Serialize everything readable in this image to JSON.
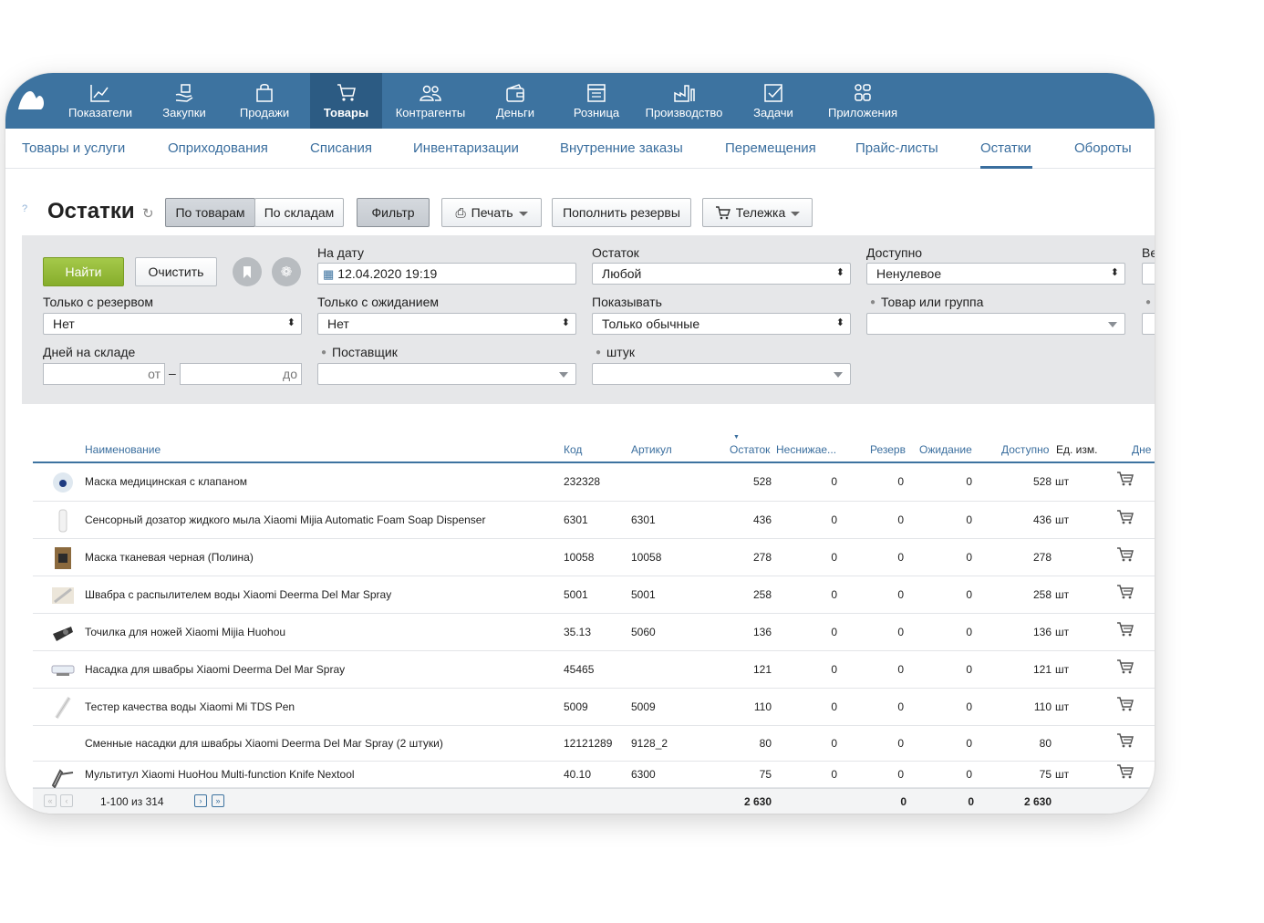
{
  "nav": {
    "items": [
      {
        "label": "Показатели",
        "icon": "chart-line-icon"
      },
      {
        "label": "Закупки",
        "icon": "hand-box-icon"
      },
      {
        "label": "Продажи",
        "icon": "shopping-bag-icon"
      },
      {
        "label": "Товары",
        "icon": "cart-icon"
      },
      {
        "label": "Контрагенты",
        "icon": "people-icon"
      },
      {
        "label": "Деньги",
        "icon": "wallet-icon"
      },
      {
        "label": "Розница",
        "icon": "store-icon"
      },
      {
        "label": "Производство",
        "icon": "factory-icon"
      },
      {
        "label": "Задачи",
        "icon": "checkbox-icon"
      },
      {
        "label": "Приложения",
        "icon": "apps-icon"
      }
    ],
    "active": "Товары",
    "color": "#3d73a0"
  },
  "subnav": {
    "items": [
      "Товары и услуги",
      "Оприходования",
      "Списания",
      "Инвентаризации",
      "Внутренние заказы",
      "Перемещения",
      "Прайс-листы",
      "Остатки",
      "Обороты"
    ],
    "active": "Остатки"
  },
  "toolbar": {
    "help": "?",
    "title": "Остатки",
    "by_goods": "По товарам",
    "by_warehouses": "По складам",
    "filter": "Фильтр",
    "print": "Печать",
    "replenish": "Пополнить резервы",
    "cart": "Тележка"
  },
  "filters": {
    "find": "Найти",
    "clear": "Очистить",
    "date_label": "На дату",
    "date_value": "12.04.2020 19:19",
    "stock_label": "Остаток",
    "stock_value": "Любой",
    "available_label": "Доступно",
    "available_value": "Ненулевое",
    "cut_label": "Ве",
    "reserve_label": "Только с резервом",
    "reserve_value": "Нет",
    "waiting_label": "Только с ожиданием",
    "waiting_value": "Нет",
    "show_label": "Показывать",
    "show_value": "Только обычные",
    "group_label": "Товар или группа",
    "days_label": "Дней на складе",
    "days_from": "от",
    "days_to": "до",
    "supplier_label": "Поставщик",
    "pieces_label": "штук",
    "dash": "–"
  },
  "table": {
    "headers": {
      "name": "Наименование",
      "code": "Код",
      "article": "Артикул",
      "stock": "Остаток",
      "min": "Неснижае...",
      "reserve": "Резерв",
      "waiting": "Ожидание",
      "available": "Доступно",
      "unit": "Ед. изм.",
      "days": "Дне"
    },
    "rows": [
      {
        "name": "Маска медицинская с клапаном",
        "code": "232328",
        "article": "",
        "stock": "528",
        "min": "0",
        "reserve": "0",
        "waiting": "0",
        "available": "528",
        "unit": "шт"
      },
      {
        "name": "Сенсорный дозатор жидкого мыла Xiaomi Mijia Automatic Foam Soap Dispenser",
        "code": "6301",
        "article": "6301",
        "stock": "436",
        "min": "0",
        "reserve": "0",
        "waiting": "0",
        "available": "436",
        "unit": "шт"
      },
      {
        "name": "Маска тканевая черная (Полина)",
        "code": "10058",
        "article": "10058",
        "stock": "278",
        "min": "0",
        "reserve": "0",
        "waiting": "0",
        "available": "278",
        "unit": ""
      },
      {
        "name": "Швабра с распылителем воды Xiaomi Deerma Del Mar Spray",
        "code": "5001",
        "article": "5001",
        "stock": "258",
        "min": "0",
        "reserve": "0",
        "waiting": "0",
        "available": "258",
        "unit": "шт"
      },
      {
        "name": "Точилка для ножей Xiaomi Mijia Huohou",
        "code": "35.13",
        "article": "5060",
        "stock": "136",
        "min": "0",
        "reserve": "0",
        "waiting": "0",
        "available": "136",
        "unit": "шт"
      },
      {
        "name": "Насадка для швабры Xiaomi Deerma Del Mar Spray",
        "code": "45465",
        "article": "",
        "stock": "121",
        "min": "0",
        "reserve": "0",
        "waiting": "0",
        "available": "121",
        "unit": "шт"
      },
      {
        "name": "Тестер качества воды Xiaomi Mi TDS Pen",
        "code": "5009",
        "article": "5009",
        "stock": "110",
        "min": "0",
        "reserve": "0",
        "waiting": "0",
        "available": "110",
        "unit": "шт"
      },
      {
        "name": "Сменные насадки для швабры Xiaomi Deerma Del Mar Spray (2 штуки)",
        "code": "12121289",
        "article": "9128_2",
        "stock": "80",
        "min": "0",
        "reserve": "0",
        "waiting": "0",
        "available": "80",
        "unit": ""
      },
      {
        "name": "Мультитул Xiaomi HuoHou Multi-function Knife Nextool",
        "code": "40.10",
        "article": "6300",
        "stock": "75",
        "min": "0",
        "reserve": "0",
        "waiting": "0",
        "available": "75",
        "unit": "шт"
      }
    ]
  },
  "footer": {
    "pages": "1-100 из 314",
    "total_stock": "2 630",
    "total_reserve": "0",
    "total_waiting": "0",
    "total_available": "2 630"
  }
}
